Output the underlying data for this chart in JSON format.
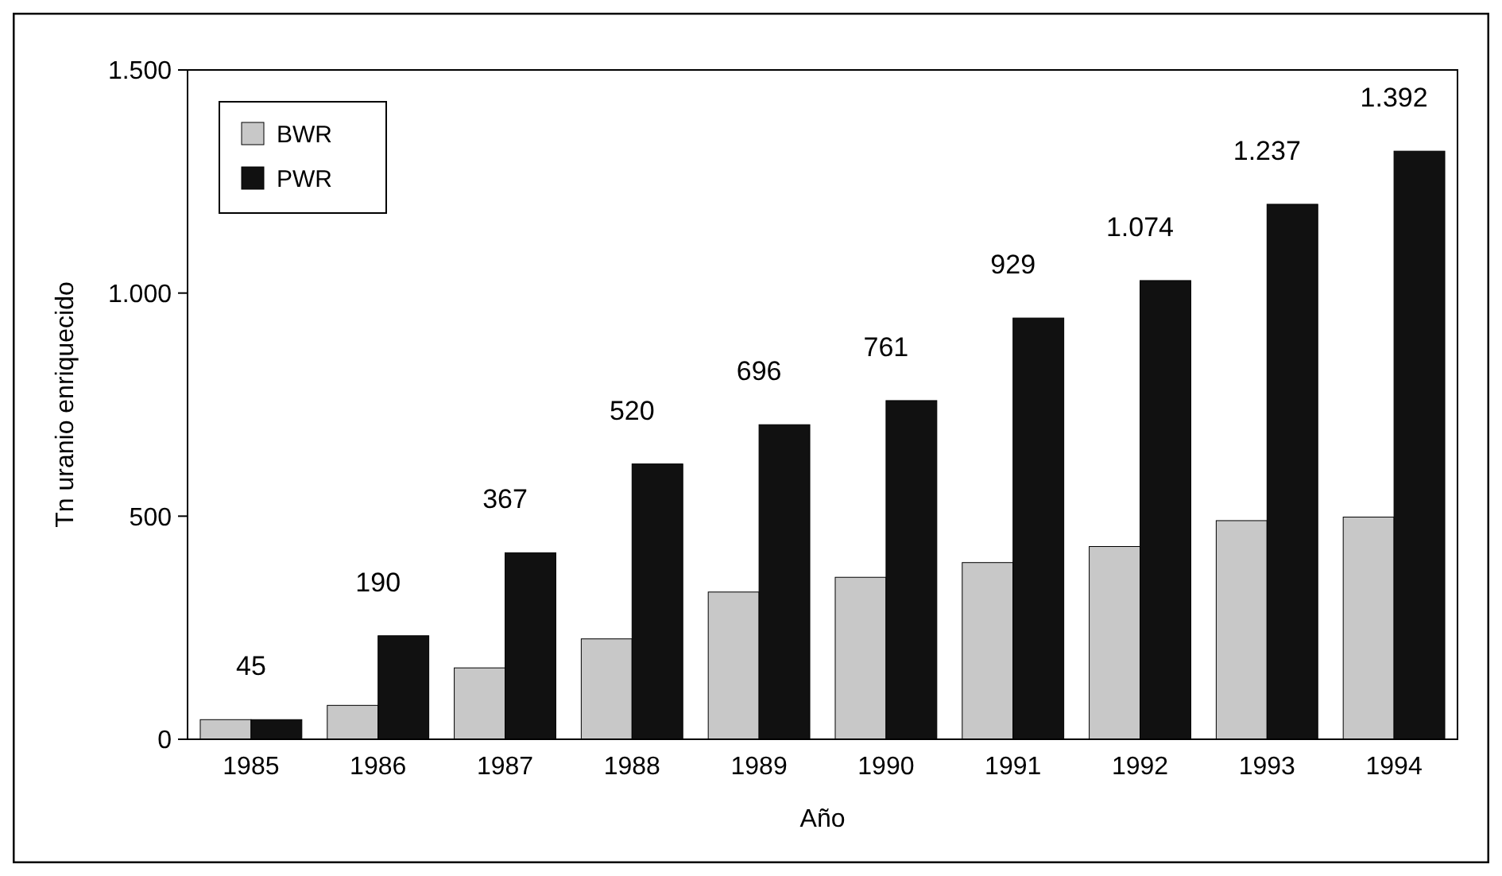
{
  "chart_data": {
    "type": "bar",
    "xlabel": "Año",
    "ylabel": "Tn uranio enriquecido",
    "categories": [
      "1985",
      "1986",
      "1987",
      "1988",
      "1989",
      "1990",
      "1991",
      "1992",
      "1993",
      "1994"
    ],
    "series": [
      {
        "name": "BWR",
        "color": "#c8c8c8",
        "values": [
          44,
          76,
          160,
          225,
          330,
          363,
          396,
          432,
          490,
          498
        ]
      },
      {
        "name": "PWR",
        "color": "#111111",
        "values": [
          44,
          232,
          418,
          617,
          705,
          759,
          944,
          1028,
          1199,
          1318
        ]
      }
    ],
    "ylim": [
      0,
      1500
    ],
    "yticks": [
      0,
      500,
      {
        "value": 1000,
        "label": "1.000"
      },
      {
        "value": 1500,
        "label": "1.500"
      }
    ],
    "grid": false,
    "legend": "top left",
    "annotations": [
      "45",
      "190",
      "367",
      "520",
      "696",
      "761",
      "929",
      "1.074",
      "1.237",
      "1.392"
    ]
  }
}
